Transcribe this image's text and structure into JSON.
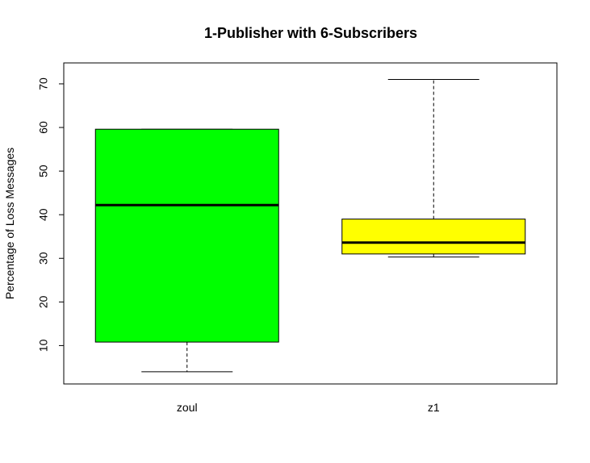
{
  "chart_data": {
    "type": "box",
    "title": "1-Publisher with 6-Subscribers",
    "xlabel": "",
    "ylabel": "Percentage of Loss Messages",
    "ylim": [
      1.2,
      74.8
    ],
    "y_ticks": [
      10,
      20,
      30,
      40,
      50,
      60,
      70
    ],
    "categories": [
      "zoul",
      "z1"
    ],
    "boxes": [
      {
        "category": "zoul",
        "min": 4.0,
        "q1": 10.8,
        "median": 42.2,
        "q3": 59.6,
        "max": 59.6,
        "color": "#00ff00"
      },
      {
        "category": "z1",
        "min": 30.3,
        "q1": 31.0,
        "median": 33.6,
        "q3": 39.0,
        "max": 71.0,
        "color": "#ffff00"
      }
    ],
    "grid": false,
    "legend": "none"
  }
}
